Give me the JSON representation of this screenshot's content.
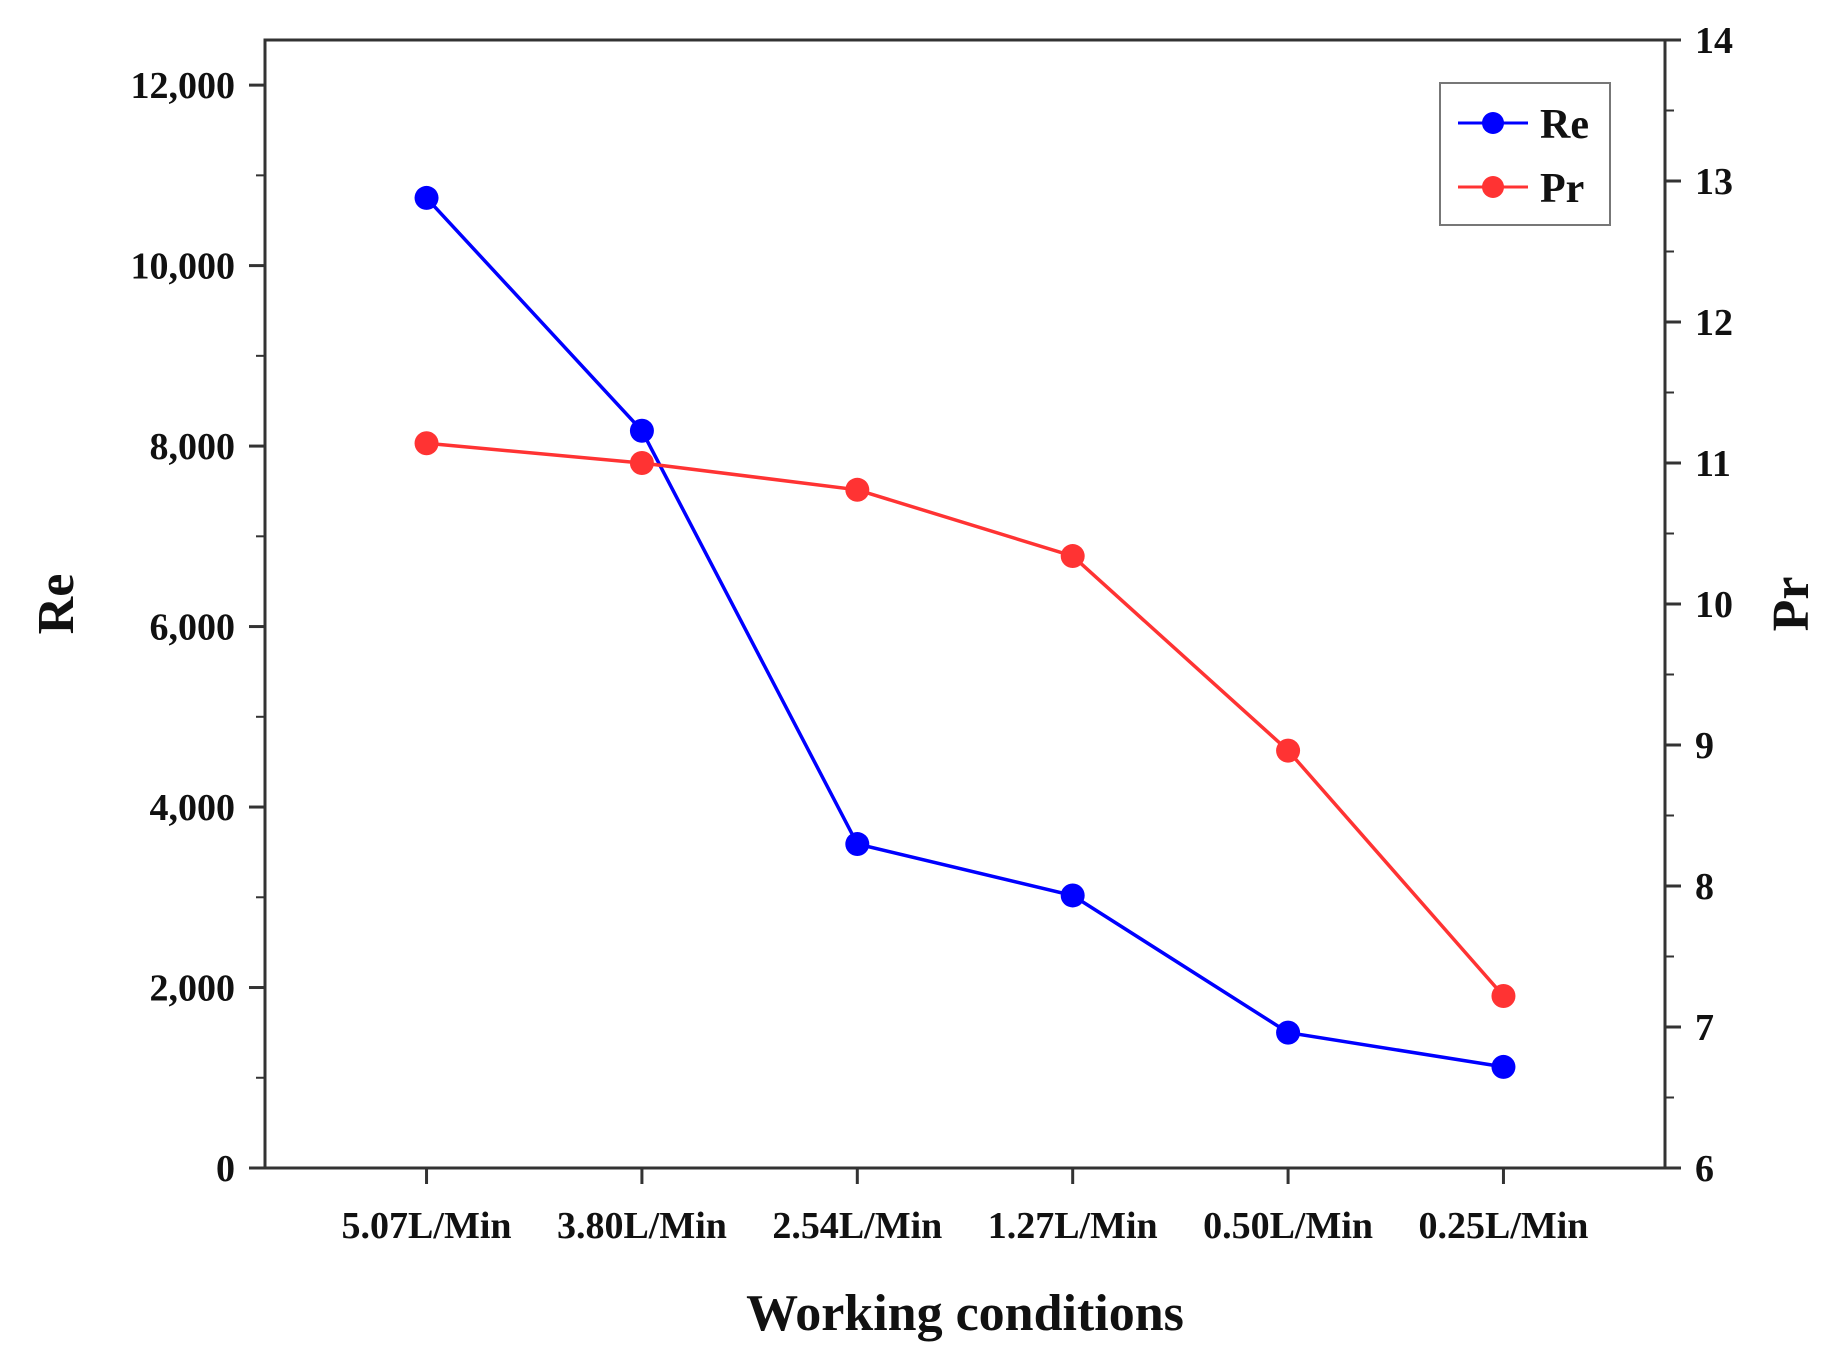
{
  "chart_data": {
    "type": "line",
    "title": "",
    "xlabel": "Working conditions",
    "ylabel": "Re",
    "y2label": "Pr",
    "categories": [
      "5.07L/Min",
      "3.80L/Min",
      "2.54L/Min",
      "1.27L/Min",
      "0.50L/Min",
      "0.25L/Min"
    ],
    "ylim": [
      0,
      12500
    ],
    "yticks": [
      0,
      2000,
      4000,
      6000,
      8000,
      10000,
      12000
    ],
    "ytick_labels": [
      "0",
      "2,000",
      "4,000",
      "6,000",
      "8,000",
      "10,000",
      "12,000"
    ],
    "y2lim": [
      6,
      14
    ],
    "y2ticks": [
      6,
      7,
      8,
      9,
      10,
      11,
      12,
      13,
      14
    ],
    "y2tick_labels": [
      "6",
      "7",
      "8",
      "9",
      "10",
      "11",
      "12",
      "13",
      "14"
    ],
    "grid": false,
    "legend_position": "top-right",
    "series": [
      {
        "name": "Re",
        "axis": "left",
        "color": "#0000ff",
        "linestyle": "solid",
        "values": [
          10750,
          8170,
          3590,
          3020,
          1500,
          1120
        ]
      },
      {
        "name": "Pr",
        "axis": "right",
        "color": "#ff3333",
        "linestyle": "solid",
        "values": [
          11.14,
          11.0,
          10.81,
          10.34,
          8.96,
          7.22
        ]
      }
    ]
  }
}
